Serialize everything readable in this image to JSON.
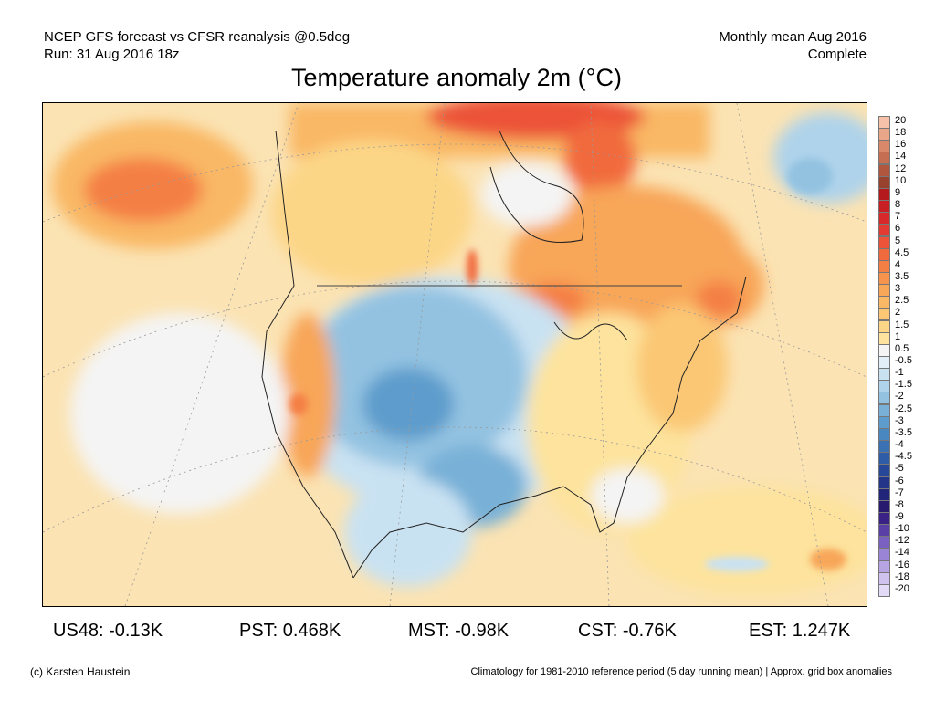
{
  "header": {
    "source_line": "NCEP GFS forecast vs CFSR reanalysis @0.5deg",
    "run_line": "Run: 31 Aug 2016 18z",
    "period_line": "Monthly mean Aug 2016",
    "status_line": "Complete"
  },
  "title": "Temperature anomaly 2m (°C)",
  "colorbar": {
    "levels": [
      {
        "label": "20",
        "color": "#f6c3aa"
      },
      {
        "label": "18",
        "color": "#e9a688"
      },
      {
        "label": "16",
        "color": "#d9896a"
      },
      {
        "label": "14",
        "color": "#c66e52"
      },
      {
        "label": "12",
        "color": "#b0563f"
      },
      {
        "label": "10",
        "color": "#98412f"
      },
      {
        "label": "9",
        "color": "#b5191e"
      },
      {
        "label": "8",
        "color": "#c71f23"
      },
      {
        "label": "7",
        "color": "#d8282a"
      },
      {
        "label": "6",
        "color": "#e33b33"
      },
      {
        "label": "5",
        "color": "#ec5338"
      },
      {
        "label": "4.5",
        "color": "#f16a3e"
      },
      {
        "label": "4",
        "color": "#f47f45"
      },
      {
        "label": "3.5",
        "color": "#f6934d"
      },
      {
        "label": "3",
        "color": "#f8a658"
      },
      {
        "label": "2.5",
        "color": "#f9b865"
      },
      {
        "label": "2",
        "color": "#fbc775"
      },
      {
        "label": "1.5",
        "color": "#fcd687"
      },
      {
        "label": "1",
        "color": "#fde39d"
      },
      {
        "label": "0.5",
        "color": "#f4f4f4"
      },
      {
        "label": "-0.5",
        "color": "#e2eff9"
      },
      {
        "label": "-1",
        "color": "#c9e2f2"
      },
      {
        "label": "-1.5",
        "color": "#afd3eb"
      },
      {
        "label": "-2",
        "color": "#93c2e1"
      },
      {
        "label": "-2.5",
        "color": "#78b0d7"
      },
      {
        "label": "-3",
        "color": "#5d9ccc"
      },
      {
        "label": "-3.5",
        "color": "#4887c0"
      },
      {
        "label": "-4",
        "color": "#3a71b3"
      },
      {
        "label": "-4.5",
        "color": "#2f5ca6"
      },
      {
        "label": "-5",
        "color": "#274798"
      },
      {
        "label": "-6",
        "color": "#223589"
      },
      {
        "label": "-7",
        "color": "#21267a"
      },
      {
        "label": "-8",
        "color": "#281a6e"
      },
      {
        "label": "-9",
        "color": "#3a2185"
      },
      {
        "label": "-10",
        "color": "#5a3fa6"
      },
      {
        "label": "-12",
        "color": "#7a61c1"
      },
      {
        "label": "-14",
        "color": "#9a84d5"
      },
      {
        "label": "-16",
        "color": "#b7a5e3"
      },
      {
        "label": "-18",
        "color": "#cfc2ee"
      },
      {
        "label": "-20",
        "color": "#e2daf6"
      }
    ]
  },
  "stats": [
    {
      "label": "US48: -0.13K"
    },
    {
      "label": "PST: 0.468K"
    },
    {
      "label": "MST: -0.98K"
    },
    {
      "label": "CST: -0.76K"
    },
    {
      "label": "EST: 1.247K"
    }
  ],
  "footer": {
    "credit": "(c) Karsten Haustein",
    "note": "Climatology for 1981-2010 reference period (5 day running mean) | Approx. grid box anomalies"
  }
}
